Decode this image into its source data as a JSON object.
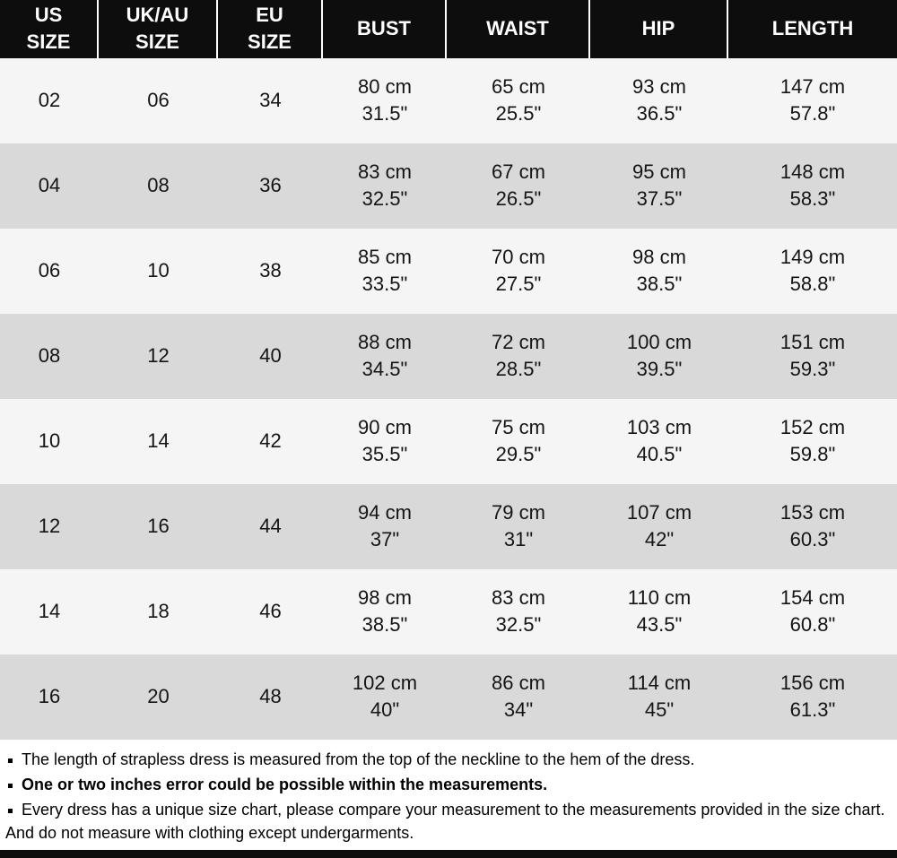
{
  "chart_data": {
    "type": "table",
    "columns": [
      {
        "key": "us_size",
        "label": "US SIZE",
        "lines": [
          "US",
          "SIZE"
        ]
      },
      {
        "key": "uk_au_size",
        "label": "UK/AU SIZE",
        "lines": [
          "UK/AU",
          "SIZE"
        ]
      },
      {
        "key": "eu_size",
        "label": "EU SIZE",
        "lines": [
          "EU",
          "SIZE"
        ]
      },
      {
        "key": "bust",
        "label": "BUST",
        "lines": [
          "BUST"
        ]
      },
      {
        "key": "waist",
        "label": "WAIST",
        "lines": [
          "WAIST"
        ]
      },
      {
        "key": "hip",
        "label": "HIP",
        "lines": [
          "HIP"
        ]
      },
      {
        "key": "length",
        "label": "LENGTH",
        "lines": [
          "LENGTH"
        ]
      }
    ],
    "rows": [
      {
        "us_size": "02",
        "uk_au_size": "06",
        "eu_size": "34",
        "bust": [
          "80 cm",
          "31.5\""
        ],
        "waist": [
          "65 cm",
          "25.5\""
        ],
        "hip": [
          "93 cm",
          "36.5\""
        ],
        "length": [
          "147 cm",
          "57.8\""
        ]
      },
      {
        "us_size": "04",
        "uk_au_size": "08",
        "eu_size": "36",
        "bust": [
          "83 cm",
          "32.5\""
        ],
        "waist": [
          "67 cm",
          "26.5\""
        ],
        "hip": [
          "95 cm",
          "37.5\""
        ],
        "length": [
          "148 cm",
          "58.3\""
        ]
      },
      {
        "us_size": "06",
        "uk_au_size": "10",
        "eu_size": "38",
        "bust": [
          "85 cm",
          "33.5\""
        ],
        "waist": [
          "70 cm",
          "27.5\""
        ],
        "hip": [
          "98 cm",
          "38.5\""
        ],
        "length": [
          "149 cm",
          "58.8\""
        ]
      },
      {
        "us_size": "08",
        "uk_au_size": "12",
        "eu_size": "40",
        "bust": [
          "88 cm",
          "34.5\""
        ],
        "waist": [
          "72 cm",
          "28.5\""
        ],
        "hip": [
          "100 cm",
          "39.5\""
        ],
        "length": [
          "151 cm",
          "59.3\""
        ]
      },
      {
        "us_size": "10",
        "uk_au_size": "14",
        "eu_size": "42",
        "bust": [
          "90 cm",
          "35.5\""
        ],
        "waist": [
          "75 cm",
          "29.5\""
        ],
        "hip": [
          "103 cm",
          "40.5\""
        ],
        "length": [
          "152 cm",
          "59.8\""
        ]
      },
      {
        "us_size": "12",
        "uk_au_size": "16",
        "eu_size": "44",
        "bust": [
          "94 cm",
          "37\""
        ],
        "waist": [
          "79 cm",
          "31\""
        ],
        "hip": [
          "107 cm",
          "42\""
        ],
        "length": [
          "153 cm",
          "60.3\""
        ]
      },
      {
        "us_size": "14",
        "uk_au_size": "18",
        "eu_size": "46",
        "bust": [
          "98 cm",
          "38.5\""
        ],
        "waist": [
          "83 cm",
          "32.5\""
        ],
        "hip": [
          "110 cm",
          "43.5\""
        ],
        "length": [
          "154 cm",
          "60.8\""
        ]
      },
      {
        "us_size": "16",
        "uk_au_size": "20",
        "eu_size": "48",
        "bust": [
          "102 cm",
          "40\""
        ],
        "waist": [
          "86 cm",
          "34\""
        ],
        "hip": [
          "114 cm",
          "45\""
        ],
        "length": [
          "156 cm",
          "61.3\""
        ]
      }
    ]
  },
  "notes": [
    {
      "text": "The length of strapless dress is measured from the top of the neckline to the hem of the dress.",
      "bold": false
    },
    {
      "text": "One or two inches error could be possible within the measurements.",
      "bold": true
    },
    {
      "text": "Every dress has a unique size chart, please compare your measurement to the measurements provided in the size chart. And do not measure with clothing except undergarments.",
      "bold": false
    }
  ],
  "colors": {
    "header_bg": "#0d0d0d",
    "header_text": "#ffffff",
    "row_light": "#f5f5f5",
    "row_dark": "#d9d9d9",
    "cell_text": "#141414",
    "notes_text": "#000000",
    "bottom_bar": "#0d0d0d"
  }
}
